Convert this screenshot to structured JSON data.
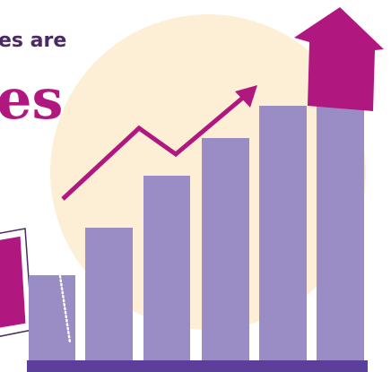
{
  "headline": {
    "line1": "es are",
    "line2": "es"
  }
}
